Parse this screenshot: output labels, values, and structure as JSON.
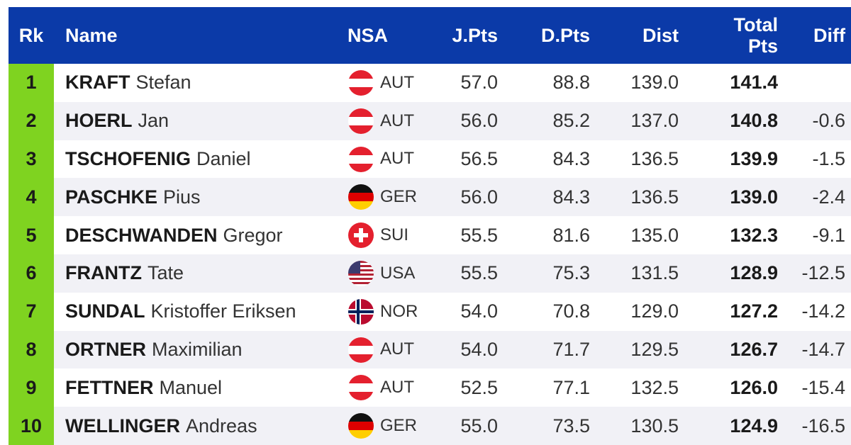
{
  "headers": {
    "rk": "Rk",
    "name": "Name",
    "nsa": "NSA",
    "jpts": "J.Pts",
    "dpts": "D.Pts",
    "dist": "Dist",
    "total_line1": "Total",
    "total_line2": "Pts",
    "diff": "Diff"
  },
  "colors": {
    "header_bg": "#0b3aa8",
    "rank_bg": "#7fd320",
    "alt_row_bg": "#f1f1f6"
  },
  "rows": [
    {
      "rk": "1",
      "last": "KRAFT",
      "first": "Stefan",
      "flag": "aut-flag-icon",
      "nsa": "AUT",
      "jpts": "57.0",
      "dpts": "88.8",
      "dist": "139.0",
      "total": "141.4",
      "diff": ""
    },
    {
      "rk": "2",
      "last": "HOERL",
      "first": "Jan",
      "flag": "aut-flag-icon",
      "nsa": "AUT",
      "jpts": "56.0",
      "dpts": "85.2",
      "dist": "137.0",
      "total": "140.8",
      "diff": "-0.6"
    },
    {
      "rk": "3",
      "last": "TSCHOFENIG",
      "first": "Daniel",
      "flag": "aut-flag-icon",
      "nsa": "AUT",
      "jpts": "56.5",
      "dpts": "84.3",
      "dist": "136.5",
      "total": "139.9",
      "diff": "-1.5"
    },
    {
      "rk": "4",
      "last": "PASCHKE",
      "first": "Pius",
      "flag": "ger-flag-icon",
      "nsa": "GER",
      "jpts": "56.0",
      "dpts": "84.3",
      "dist": "136.5",
      "total": "139.0",
      "diff": "-2.4"
    },
    {
      "rk": "5",
      "last": "DESCHWANDEN",
      "first": "Gregor",
      "flag": "sui-flag-icon",
      "nsa": "SUI",
      "jpts": "55.5",
      "dpts": "81.6",
      "dist": "135.0",
      "total": "132.3",
      "diff": "-9.1"
    },
    {
      "rk": "6",
      "last": "FRANTZ",
      "first": "Tate",
      "flag": "usa-flag-icon",
      "nsa": "USA",
      "jpts": "55.5",
      "dpts": "75.3",
      "dist": "131.5",
      "total": "128.9",
      "diff": "-12.5"
    },
    {
      "rk": "7",
      "last": "SUNDAL",
      "first": "Kristoffer Eriksen",
      "flag": "nor-flag-icon",
      "nsa": "NOR",
      "jpts": "54.0",
      "dpts": "70.8",
      "dist": "129.0",
      "total": "127.2",
      "diff": "-14.2"
    },
    {
      "rk": "8",
      "last": "ORTNER",
      "first": "Maximilian",
      "flag": "aut-flag-icon",
      "nsa": "AUT",
      "jpts": "54.0",
      "dpts": "71.7",
      "dist": "129.5",
      "total": "126.7",
      "diff": "-14.7"
    },
    {
      "rk": "9",
      "last": "FETTNER",
      "first": "Manuel",
      "flag": "aut-flag-icon",
      "nsa": "AUT",
      "jpts": "52.5",
      "dpts": "77.1",
      "dist": "132.5",
      "total": "126.0",
      "diff": "-15.4"
    },
    {
      "rk": "10",
      "last": "WELLINGER",
      "first": "Andreas",
      "flag": "ger-flag-icon",
      "nsa": "GER",
      "jpts": "55.0",
      "dpts": "73.5",
      "dist": "130.5",
      "total": "124.9",
      "diff": "-16.5"
    }
  ]
}
